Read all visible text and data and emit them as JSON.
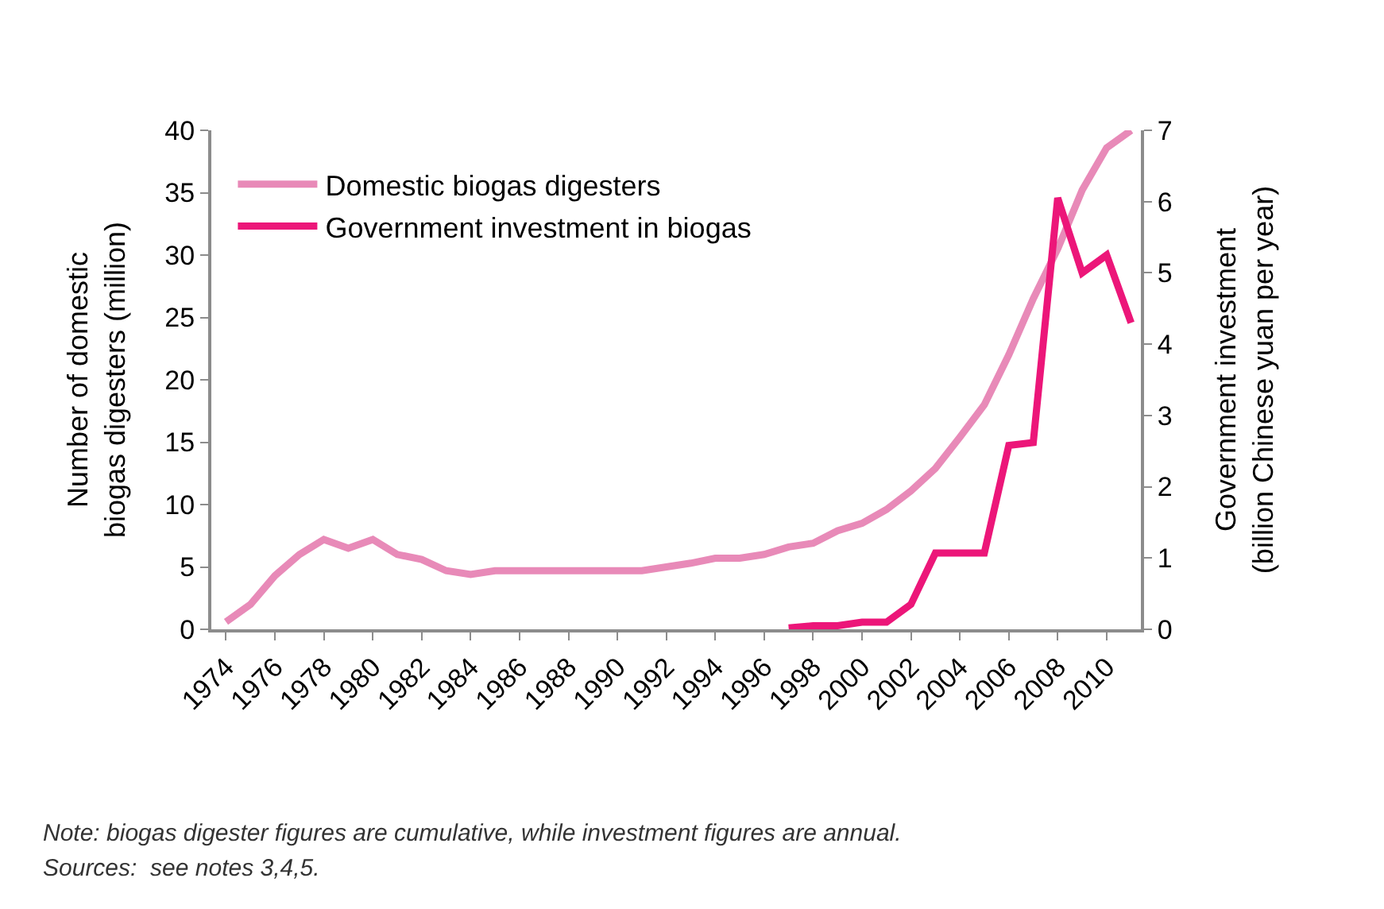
{
  "chart_data": {
    "type": "line",
    "x": [
      1974,
      1975,
      1976,
      1977,
      1978,
      1979,
      1980,
      1981,
      1982,
      1983,
      1984,
      1985,
      1986,
      1987,
      1988,
      1989,
      1990,
      1991,
      1992,
      1993,
      1994,
      1995,
      1996,
      1997,
      1998,
      1999,
      2000,
      2001,
      2002,
      2003,
      2004,
      2005,
      2006,
      2007,
      2008,
      2009,
      2010,
      2011
    ],
    "series": [
      {
        "name": "Domestic biogas digesters",
        "color": "#e88ab8",
        "axis": "y",
        "values": [
          0.6,
          2,
          4.3,
          6,
          7.2,
          6.5,
          7.2,
          6,
          5.6,
          4.7,
          4.4,
          4.7,
          4.7,
          4.7,
          4.7,
          4.7,
          4.7,
          4.7,
          5,
          5.3,
          5.7,
          5.7,
          6,
          6.6,
          6.9,
          7.9,
          8.5,
          9.6,
          11.1,
          12.9,
          15.4,
          18,
          22,
          26.5,
          30.5,
          35.2,
          38.6,
          40
        ]
      },
      {
        "name": "Government investment in biogas",
        "color": "#ec1679",
        "axis": "y2",
        "values": [
          null,
          null,
          null,
          null,
          null,
          null,
          null,
          null,
          null,
          null,
          null,
          null,
          null,
          null,
          null,
          null,
          null,
          null,
          null,
          null,
          null,
          null,
          null,
          0.02,
          0.05,
          0.05,
          0.1,
          0.1,
          0.35,
          1.07,
          1.07,
          1.07,
          2.58,
          2.62,
          6.05,
          5,
          5.25,
          4.3
        ]
      }
    ],
    "xlim": [
      1973.4,
      2011.4
    ],
    "xticks": [
      1974,
      1976,
      1978,
      1980,
      1982,
      1984,
      1986,
      1988,
      1990,
      1992,
      1994,
      1996,
      1998,
      2000,
      2002,
      2004,
      2006,
      2008,
      2010
    ],
    "ylim": [
      0,
      40
    ],
    "yticks": [
      0,
      5,
      10,
      15,
      20,
      25,
      30,
      35,
      40
    ],
    "y2lim": [
      0,
      7
    ],
    "y2ticks": [
      0,
      1,
      2,
      3,
      4,
      5,
      6,
      7
    ],
    "ylabel": "Number of domestic\nbiogas digesters (million)",
    "y2label": "Government investment\n(billion Chinese yuan per year)",
    "legend": "top left",
    "marker": "none",
    "line_style": "solid",
    "annotations": [
      "Note: biogas digester figures are cumulative, while investment figures are annual.",
      "Sources:  see notes 3,4,5."
    ]
  }
}
